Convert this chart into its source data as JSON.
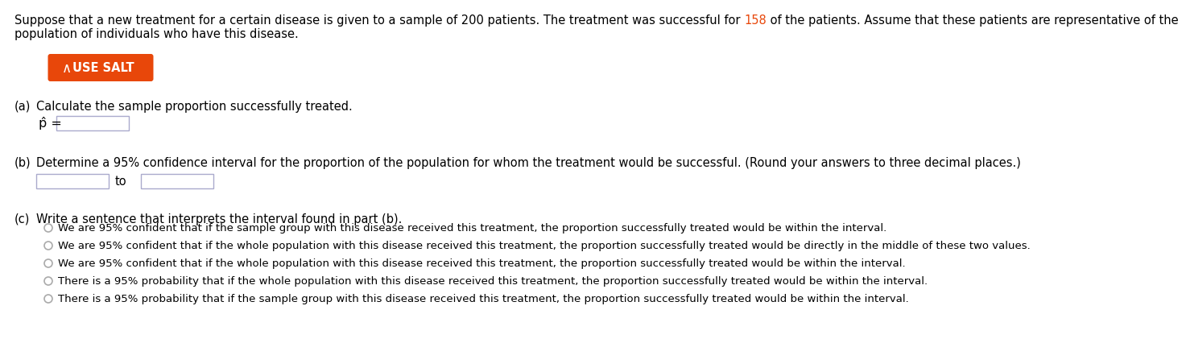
{
  "bg_color": "#ffffff",
  "text_color": "#000000",
  "highlight_color": "#e8470a",
  "orange_button_color": "#e8470a",
  "button_text": "USE SALT",
  "input_box_border": "#aaaacc",
  "radio_circle_color": "#aaaaaa",
  "line1a": "Suppose that a new treatment for a certain disease is given to a sample of 200 patients. The treatment was successful for ",
  "line1b": "158",
  "line1c": " of the patients. Assume that these patients are representative of the",
  "line2": "population of individuals who have this disease.",
  "part_a_label": "(a)",
  "part_a_text": "Calculate the sample proportion successfully treated.",
  "part_b_label": "(b)",
  "part_b_text": "Determine a 95% confidence interval for the proportion of the population for whom the treatment would be successful. (Round your answers to three decimal places.)",
  "part_b_to": "to",
  "part_c_label": "(c)",
  "part_c_text": "Write a sentence that interprets the interval found in part (b).",
  "options": [
    "We are 95% confident that if the sample group with this disease received this treatment, the proportion successfully treated would be within the interval.",
    "We are 95% confident that if the whole population with this disease received this treatment, the proportion successfully treated would be directly in the middle of these two values.",
    "We are 95% confident that if the whole population with this disease received this treatment, the proportion successfully treated would be within the interval.",
    "There is a 95% probability that if the whole population with this disease received this treatment, the proportion successfully treated would be within the interval.",
    "There is a 95% probability that if the sample group with this disease received this treatment, the proportion successfully treated would be within the interval."
  ],
  "font_size_para": 10.5,
  "font_size_label": 10.5,
  "font_size_body": 10.5,
  "font_size_option": 9.5,
  "font_size_button": 10.5
}
